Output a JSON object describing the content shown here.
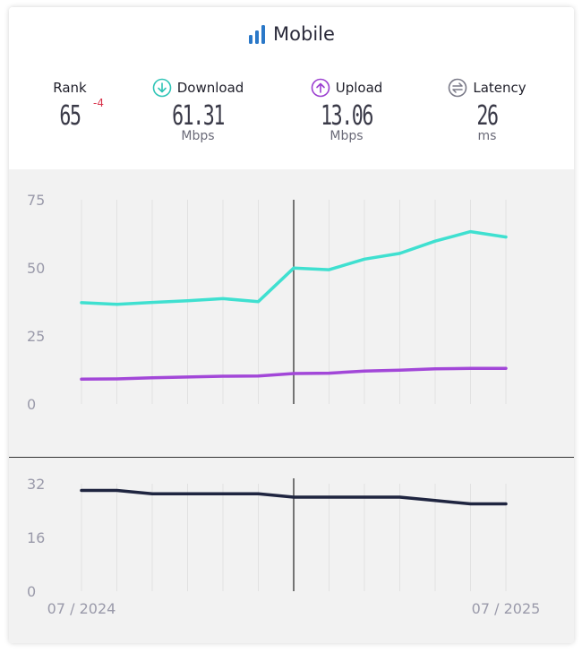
{
  "header": {
    "title": "Mobile",
    "title_icon": "signal-bars-icon",
    "metrics": {
      "rank": {
        "label": "Rank",
        "value": "65",
        "change": "-4"
      },
      "download": {
        "label": "Download",
        "value": "61.31",
        "unit": "Mbps",
        "icon": "download-arrow-icon"
      },
      "upload": {
        "label": "Upload",
        "value": "13.06",
        "unit": "Mbps",
        "icon": "upload-arrow-icon"
      },
      "latency": {
        "label": "Latency",
        "value": "26",
        "unit": "ms",
        "icon": "latency-arrows-icon"
      }
    }
  },
  "colors": {
    "download": "#3fe0d0",
    "upload": "#a247d8",
    "latency": "#1f2540",
    "icon_download": "#2ec4b6",
    "icon_upload": "#9b3fd0",
    "icon_latency": "#7a7a88",
    "title_icon": "#2a78c8",
    "rank_change": "#d8324a"
  },
  "chart_data": [
    {
      "type": "line",
      "ylim": [
        0,
        75
      ],
      "yticks": [
        0,
        25,
        50,
        75
      ],
      "grid": "vertical",
      "x": [
        "07/2024",
        "08/2024",
        "09/2024",
        "10/2024",
        "11/2024",
        "12/2024",
        "01/2025",
        "02/2025",
        "03/2025",
        "04/2025",
        "05/2025",
        "06/2025",
        "07/2025"
      ],
      "marker_index": 6,
      "series": [
        {
          "key": "download",
          "values": [
            37.2,
            36.6,
            37.3,
            37.9,
            38.7,
            37.6,
            49.9,
            49.3,
            53.2,
            55.3,
            59.8,
            63.3,
            61.3
          ]
        },
        {
          "key": "upload",
          "values": [
            9.1,
            9.2,
            9.6,
            9.9,
            10.2,
            10.3,
            11.2,
            11.3,
            12.1,
            12.4,
            12.9,
            13.1,
            13.06
          ]
        }
      ]
    },
    {
      "type": "line",
      "ylim": [
        0,
        32
      ],
      "yticks": [
        0,
        16,
        32
      ],
      "grid": "vertical",
      "x": [
        "07/2024",
        "08/2024",
        "09/2024",
        "10/2024",
        "11/2024",
        "12/2024",
        "01/2025",
        "02/2025",
        "03/2025",
        "04/2025",
        "05/2025",
        "06/2025",
        "07/2025"
      ],
      "marker_index": 6,
      "xtick_labels": [
        {
          "index": 0,
          "label": "07 / 2024"
        },
        {
          "index": 12,
          "label": "07 / 2025"
        }
      ],
      "series": [
        {
          "key": "latency",
          "values": [
            30,
            30,
            29,
            29,
            29,
            29,
            28,
            28,
            28,
            28,
            27,
            26,
            26
          ]
        }
      ]
    }
  ]
}
